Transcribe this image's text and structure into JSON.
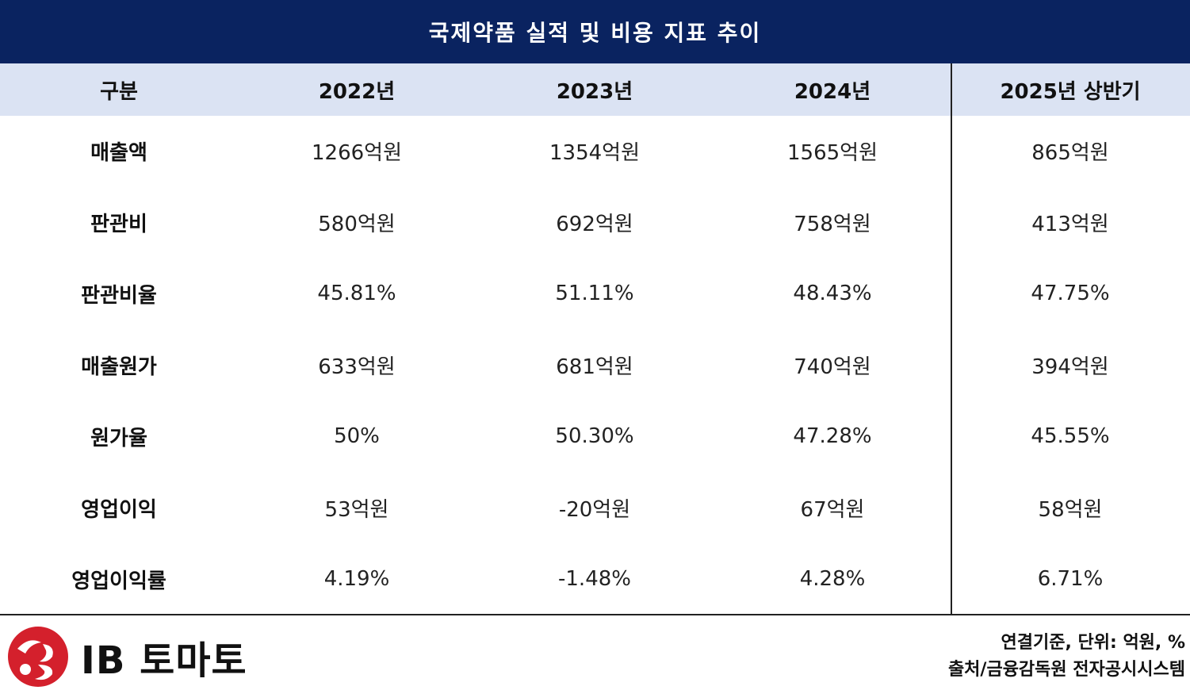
{
  "title": "국제약품 실적 및 비용 지표 추이",
  "chart_data": {
    "type": "table",
    "title": "국제약품 실적 및 비용 지표 추이",
    "columns": [
      "구분",
      "2022년",
      "2023년",
      "2024년",
      "2025년 상반기"
    ],
    "rows": [
      {
        "label": "매출액",
        "values": [
          "1266억원",
          "1354억원",
          "1565억원",
          "865억원"
        ]
      },
      {
        "label": "판관비",
        "values": [
          "580억원",
          "692억원",
          "758억원",
          "413억원"
        ]
      },
      {
        "label": "판관비율",
        "values": [
          "45.81%",
          "51.11%",
          "48.43%",
          "47.75%"
        ]
      },
      {
        "label": "매출원가",
        "values": [
          "633억원",
          "681억원",
          "740억원",
          "394억원"
        ]
      },
      {
        "label": "원가율",
        "values": [
          "50%",
          "50.30%",
          "47.28%",
          "45.55%"
        ]
      },
      {
        "label": "영업이익",
        "values": [
          "53억원",
          "-20억원",
          "67억원",
          "58억원"
        ]
      },
      {
        "label": "영업이익률",
        "values": [
          "4.19%",
          "-1.48%",
          "4.28%",
          "6.71%"
        ]
      }
    ]
  },
  "footer": {
    "logo_text": "IB 토마토",
    "note_basis": "연결기준, 단위: 억원, %",
    "note_source": "출처/금융감독원 전자공시시스템"
  },
  "colors": {
    "title_bg": "#0a2360",
    "header_bg": "#dbe3f3",
    "logo_red": "#d4202c"
  }
}
